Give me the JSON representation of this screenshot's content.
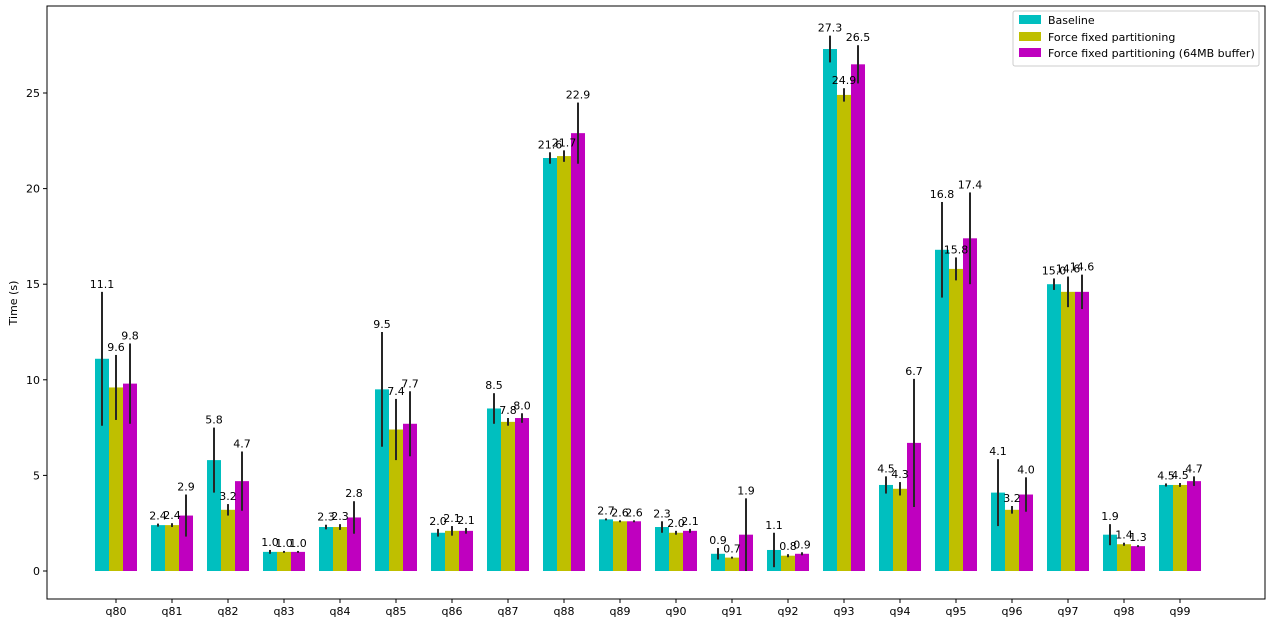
{
  "chart_data": {
    "type": "bar",
    "ylabel": "Time (s)",
    "xlabel": "",
    "title": "",
    "ylim": [
      -1.5,
      29.0
    ],
    "yticks": [
      0,
      5,
      10,
      15,
      20,
      25
    ],
    "categories": [
      "q80",
      "q81",
      "q82",
      "q83",
      "q84",
      "q85",
      "q86",
      "q87",
      "q88",
      "q89",
      "q90",
      "q91",
      "q92",
      "q93",
      "q94",
      "q95",
      "q96",
      "q97",
      "q98",
      "q99"
    ],
    "legend_position": "top-right",
    "series": [
      {
        "name": "Baseline",
        "color": "#00bfbf",
        "values": [
          11.1,
          2.4,
          5.8,
          1.0,
          2.3,
          9.5,
          2.0,
          8.5,
          21.6,
          2.7,
          2.3,
          0.9,
          1.1,
          27.3,
          4.5,
          16.8,
          4.1,
          15.0,
          1.9,
          4.5
        ],
        "errors": [
          3.5,
          0.08,
          1.7,
          0.1,
          0.12,
          3.0,
          0.2,
          0.8,
          0.3,
          0.05,
          0.3,
          0.3,
          0.9,
          0.7,
          0.45,
          2.5,
          1.75,
          0.3,
          0.55,
          0.08
        ],
        "labels": [
          "11.1",
          "2.4",
          "5.8",
          "1.0",
          "2.3",
          "9.5",
          "2.0",
          "8.5",
          "21.6",
          "2.7",
          "2.3",
          "0.9",
          "1.1",
          "27.3",
          "4.5",
          "16.8",
          "4.1",
          "15.0",
          "1.9",
          "4.5"
        ]
      },
      {
        "name": "Force fixed partitioning",
        "color": "#bfbf00",
        "values": [
          9.6,
          2.4,
          3.2,
          1.0,
          2.3,
          7.4,
          2.1,
          7.8,
          21.7,
          2.6,
          2.0,
          0.7,
          0.8,
          24.9,
          4.3,
          15.8,
          3.2,
          14.6,
          1.4,
          4.5
        ],
        "errors": [
          1.7,
          0.1,
          0.3,
          0.05,
          0.15,
          1.6,
          0.25,
          0.2,
          0.3,
          0.05,
          0.1,
          0.05,
          0.08,
          0.35,
          0.35,
          0.6,
          0.2,
          0.8,
          0.08,
          0.1
        ],
        "labels": [
          "9.6",
          "2.4",
          "3.2",
          "1.0",
          "2.3",
          "7.4",
          "2.1",
          "7.8",
          "21.7",
          "2.6",
          "2.0",
          "0.7",
          "0.8",
          "24.9",
          "4.3",
          "15.8",
          "3.2",
          "14.6",
          "1.4",
          "4.5"
        ]
      },
      {
        "name": "Force fixed partitioning (64MB buffer)",
        "color": "#bf00bf",
        "values": [
          9.8,
          2.9,
          4.7,
          1.0,
          2.8,
          7.7,
          2.1,
          8.0,
          22.9,
          2.6,
          2.1,
          1.9,
          0.9,
          26.5,
          6.7,
          17.4,
          4.0,
          14.6,
          1.3,
          4.7
        ],
        "errors": [
          2.1,
          1.1,
          1.55,
          0.05,
          0.85,
          1.7,
          0.15,
          0.25,
          1.6,
          0.05,
          0.1,
          1.9,
          0.08,
          1.0,
          3.35,
          2.4,
          0.9,
          0.9,
          0.05,
          0.25
        ],
        "labels": [
          "9.8",
          "2.9",
          "4.7",
          "1.0",
          "2.8",
          "7.7",
          "2.1",
          "8.0",
          "22.9",
          "2.6",
          "2.1",
          "1.9",
          "0.9",
          "26.5",
          "6.7",
          "17.4",
          "4.0",
          "14.6",
          "1.3",
          "4.7"
        ]
      }
    ]
  }
}
